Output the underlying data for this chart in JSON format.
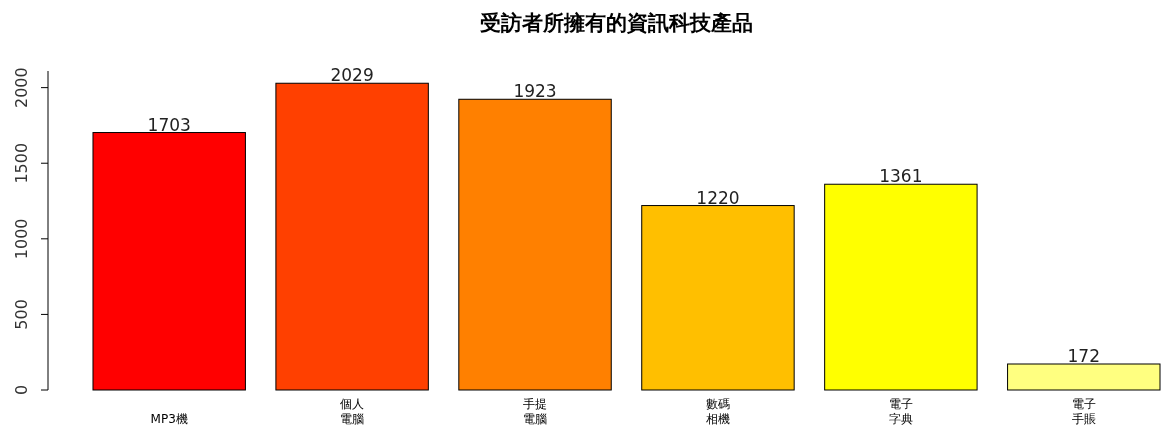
{
  "chart_data": {
    "type": "bar",
    "title": "受訪者所擁有的資訊科技產品",
    "categories": [
      "MP3機",
      "個人電腦",
      "手提電腦",
      "數碼相機",
      "電子字典",
      "電子手賬"
    ],
    "values": [
      1703,
      2029,
      1923,
      1220,
      1361,
      172
    ],
    "colors": [
      "#ff0000",
      "#ff4000",
      "#ff8000",
      "#ffbf00",
      "#ffff00",
      "#ffff80"
    ],
    "ylim": [
      0,
      2110
    ],
    "yticks": [
      0,
      500,
      1000,
      1500,
      2000
    ],
    "data_labels": true,
    "grid": false
  }
}
